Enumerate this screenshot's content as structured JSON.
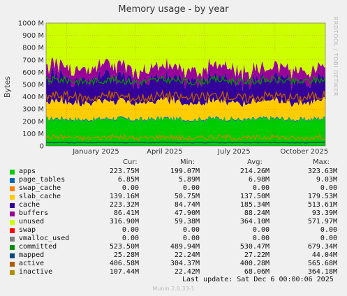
{
  "title": "Memory usage - by year",
  "side_label": "RRDTOOL / TOBI OETIKER",
  "ylabel": "Bytes",
  "legend_headers": [
    "Cur:",
    "Min:",
    "Avg:",
    "Max:"
  ],
  "last_update": "Last update:  Sat Dec  6 00:00:06 2025",
  "version": "Munin 2.0.33-1",
  "chart_data": {
    "type": "area",
    "title": "Memory usage - by year",
    "ylabel": "Bytes",
    "ylim": [
      0,
      1000
    ],
    "y_unit": "M",
    "y_ticks": [
      "0",
      "100 M",
      "200 M",
      "300 M",
      "400 M",
      "500 M",
      "600 M",
      "700 M",
      "800 M",
      "900 M",
      "1000 M"
    ],
    "x_ticks": [
      {
        "label": "January 2025",
        "date": "2025-01-01"
      },
      {
        "label": "April 2025",
        "date": "2025-04-01"
      },
      {
        "label": "July 2025",
        "date": "2025-07-01"
      },
      {
        "label": "October 2025",
        "date": "2025-10-01"
      }
    ],
    "x_range": [
      "2024-12-05",
      "2025-12-06"
    ],
    "grid": true,
    "legend_position": "bottom",
    "stack_order": [
      "apps",
      "page_tables",
      "swap_cache",
      "slab_cache",
      "cache",
      "buffers",
      "unused",
      "swap"
    ],
    "series": [
      {
        "name": "apps",
        "color": "#00cc00",
        "cur": "223.75M",
        "min": "199.07M",
        "avg": "214.26M",
        "max": "323.63M"
      },
      {
        "name": "page_tables",
        "color": "#0066b3",
        "cur": "6.85M",
        "min": "5.89M",
        "avg": "6.98M",
        "max": "9.03M"
      },
      {
        "name": "swap_cache",
        "color": "#ff8000",
        "cur": "0.00",
        "min": "0.00",
        "avg": "0.00",
        "max": "0.00"
      },
      {
        "name": "slab_cache",
        "color": "#ffcc00",
        "cur": "139.16M",
        "min": "50.75M",
        "avg": "137.50M",
        "max": "179.53M"
      },
      {
        "name": "cache",
        "color": "#330099",
        "cur": "223.32M",
        "min": "84.74M",
        "avg": "185.34M",
        "max": "513.61M"
      },
      {
        "name": "buffers",
        "color": "#990099",
        "cur": "86.41M",
        "min": "47.90M",
        "avg": "88.24M",
        "max": "93.39M"
      },
      {
        "name": "unused",
        "color": "#ccff00",
        "cur": "316.90M",
        "min": "59.38M",
        "avg": "364.10M",
        "max": "571.97M"
      },
      {
        "name": "swap",
        "color": "#ff0000",
        "cur": "0.00",
        "min": "0.00",
        "avg": "0.00",
        "max": "0.00"
      },
      {
        "name": "vmalloc_used",
        "color": "#808080",
        "cur": "0.00",
        "min": "0.00",
        "avg": "0.00",
        "max": "0.00"
      },
      {
        "name": "committed",
        "color": "#008f00",
        "cur": "523.50M",
        "min": "489.94M",
        "avg": "530.47M",
        "max": "679.34M"
      },
      {
        "name": "mapped",
        "color": "#00487d",
        "cur": "25.28M",
        "min": "22.24M",
        "avg": "27.22M",
        "max": "44.04M"
      },
      {
        "name": "active",
        "color": "#b35a00",
        "cur": "406.58M",
        "min": "304.37M",
        "avg": "400.28M",
        "max": "565.68M"
      },
      {
        "name": "inactive",
        "color": "#b38f00",
        "cur": "107.44M",
        "min": "22.42M",
        "avg": "68.06M",
        "max": "364.18M"
      }
    ]
  }
}
